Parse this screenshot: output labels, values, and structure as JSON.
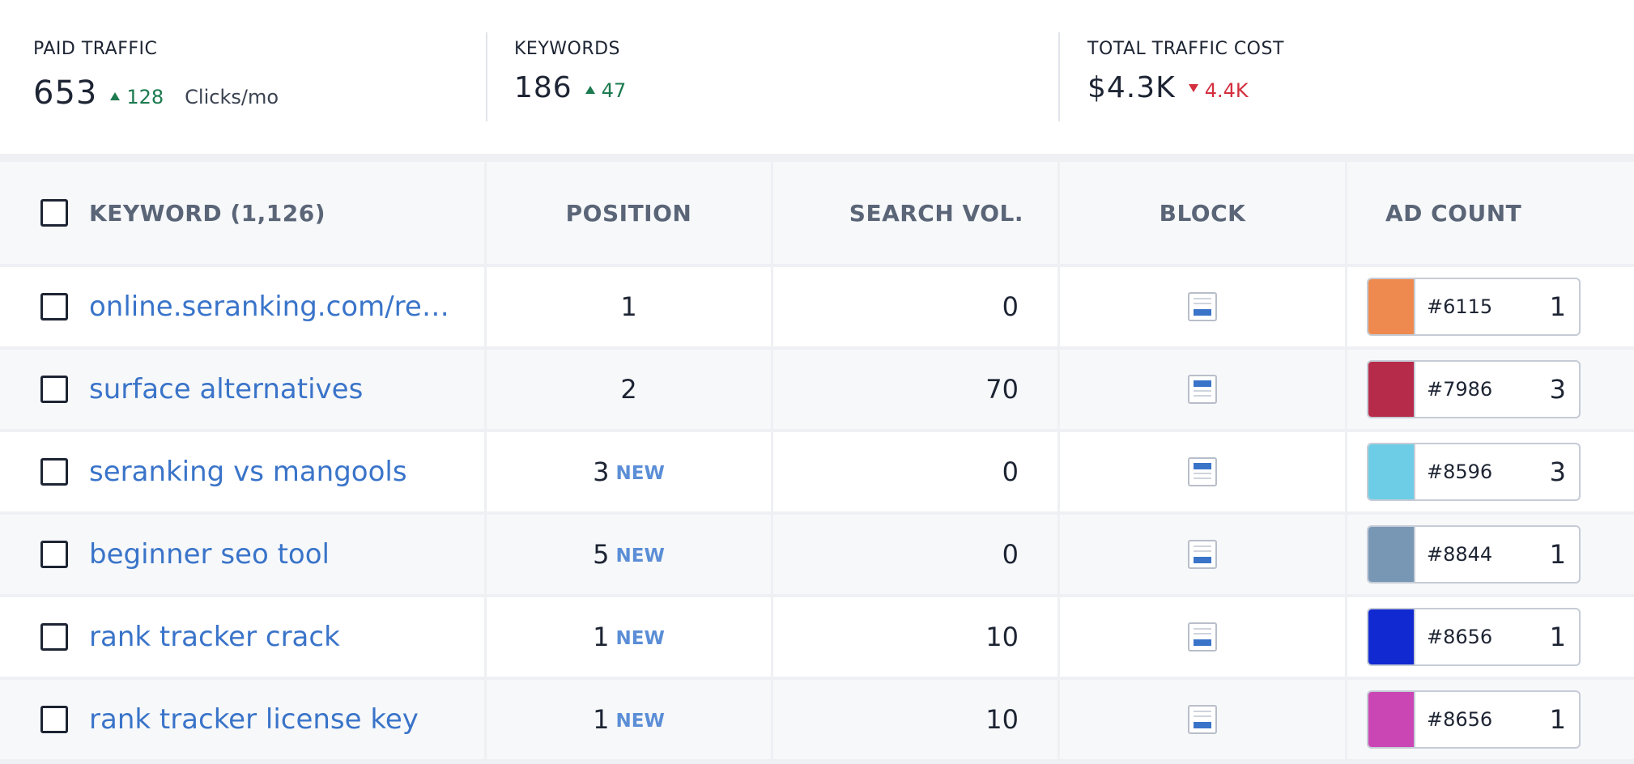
{
  "stats": {
    "paid_traffic": {
      "label": "PAID TRAFFIC",
      "value": "653",
      "delta": "128",
      "delta_dir": "up",
      "unit": "Clicks/mo"
    },
    "keywords": {
      "label": "KEYWORDS",
      "value": "186",
      "delta": "47",
      "delta_dir": "up"
    },
    "traffic_cost": {
      "label": "TOTAL TRAFFIC COST",
      "value": "$4.3K",
      "delta": "4.4K",
      "delta_dir": "down"
    }
  },
  "table": {
    "columns": {
      "keyword": "KEYWORD (1,126)",
      "position": "POSITION",
      "search_vol": "SEARCH VOL.",
      "block": "BLOCK",
      "ad_count": "AD COUNT"
    },
    "rows": [
      {
        "keyword": "online.seranking.com/resea...",
        "position": "1",
        "new": "",
        "volume": "0",
        "block": "bottom-ad",
        "ad_color": "#EE8A4F",
        "ad_code": "#6115",
        "ad_count": "1"
      },
      {
        "keyword": "surface alternatives",
        "position": "2",
        "new": "",
        "volume": "70",
        "block": "top-ad",
        "ad_color": "#B72B4A",
        "ad_code": "#7986",
        "ad_count": "3"
      },
      {
        "keyword": "seranking vs mangools",
        "position": "3",
        "new": "NEW",
        "volume": "0",
        "block": "top-ad",
        "ad_color": "#6DCDE6",
        "ad_code": "#8596",
        "ad_count": "3"
      },
      {
        "keyword": "beginner seo tool",
        "position": "5",
        "new": "NEW",
        "volume": "0",
        "block": "bottom-ad",
        "ad_color": "#7897B5",
        "ad_code": "#8844",
        "ad_count": "1"
      },
      {
        "keyword": "rank tracker crack",
        "position": "1",
        "new": "NEW",
        "volume": "10",
        "block": "bottom-ad",
        "ad_color": "#1029D0",
        "ad_code": "#8656",
        "ad_count": "1"
      },
      {
        "keyword": "rank tracker license key",
        "position": "1",
        "new": "NEW",
        "volume": "10",
        "block": "bottom-ad",
        "ad_color": "#C946B4",
        "ad_code": "#8656",
        "ad_count": "1"
      }
    ]
  }
}
